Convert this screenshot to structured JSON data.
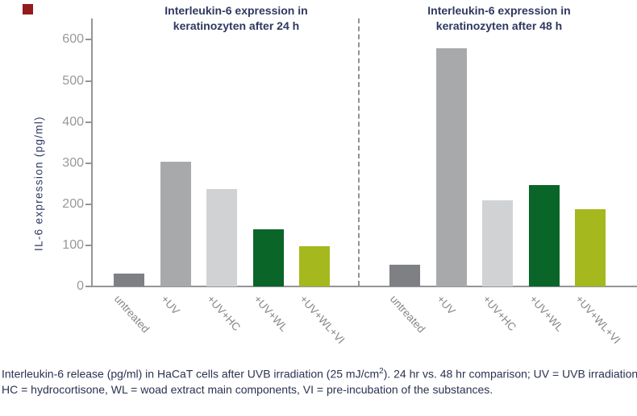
{
  "marker": {
    "color": "#941b1c"
  },
  "panels": [
    {
      "title_line1": "Interleukin-6 expression in",
      "title_line2": "keratinozyten after 24 h"
    },
    {
      "title_line1": "Interleukin-6 expression in",
      "title_line2": "keratinozyten after 48 h"
    }
  ],
  "y_axis": {
    "title": "IL-6 expression (pg/ml)",
    "tick_labels": [
      "0",
      "100",
      "200",
      "300",
      "400",
      "500",
      "600"
    ]
  },
  "caption": {
    "line1": "Interleukin-6 release (pg/ml) in HaCaT cells after UVB irradiation (25 mJ/cm²). 24 hr vs. 48 hr comparison; UV = UVB irradiation,",
    "line2": "HC = hydrocortisone, WL = woad extract main components, VI = pre-incubation of the substances."
  },
  "chart_data": {
    "type": "bar",
    "categories": [
      "untreated",
      "+UV",
      "+UV+HC",
      "+UV+WL",
      "+UV+WL+VI"
    ],
    "series": [
      {
        "name": "Interleukin-6 expression in keratinozyten after 24 h",
        "values": [
          31,
          303,
          237,
          139,
          97
        ]
      },
      {
        "name": "Interleukin-6 expression in keratinozyten after 48 h",
        "values": [
          52,
          580,
          210,
          247,
          188
        ]
      }
    ],
    "bar_colors": [
      "#7e8083",
      "#a7a9ab",
      "#d0d2d4",
      "#0a6529",
      "#a5b81e"
    ],
    "title": "",
    "xlabel": "",
    "ylabel": "IL-6 expression (pg/ml)",
    "ylim": [
      0,
      655
    ],
    "yticks": [
      0,
      100,
      200,
      300,
      400,
      500,
      600
    ],
    "grid": false,
    "legend_position": "none",
    "panel_divider": "dashed vertical line between 24 h and 48 h groups"
  }
}
